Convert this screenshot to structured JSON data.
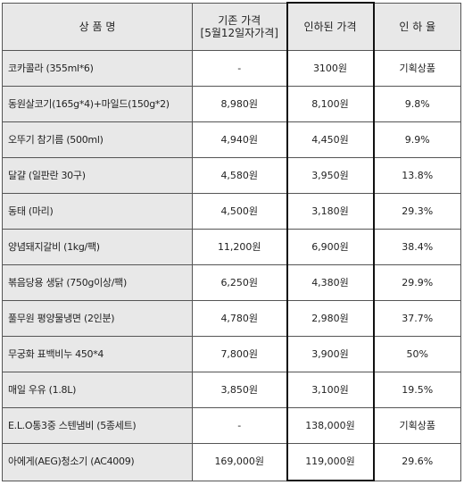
{
  "header": {
    "col_name": "상 품 명",
    "col_before_line1": "기존 가격",
    "col_before_line2": "[5월12일자가격]",
    "col_after": "인하된 가격",
    "col_rate": "인 하 율"
  },
  "rows": [
    {
      "name": "코카콜라 (355ml*6)",
      "before": "-",
      "after": "3100원",
      "rate": "기획상품"
    },
    {
      "name": "동원살코기(165g*4)+마일드(150g*2)",
      "before": "8,980원",
      "after": "8,100원",
      "rate": "9.8%"
    },
    {
      "name": "오뚜기 참기름 (500ml)",
      "before": "4,940원",
      "after": "4,450원",
      "rate": "9.9%"
    },
    {
      "name": "달걀 (일판란 30구)",
      "before": "4,580원",
      "after": "3,950원",
      "rate": "13.8%"
    },
    {
      "name": "동태 (마리)",
      "before": "4,500원",
      "after": "3,180원",
      "rate": "29.3%"
    },
    {
      "name": "양념돼지갈비 (1kg/팩)",
      "before": "11,200원",
      "after": "6,900원",
      "rate": "38.4%"
    },
    {
      "name": "볶음당용 생닭 (750g이상/팩)",
      "before": "6,250원",
      "after": "4,380원",
      "rate": "29.9%"
    },
    {
      "name": "풀무원 평양물냉면 (2인분)",
      "before": "4,780원",
      "after": "2,980원",
      "rate": "37.7%"
    },
    {
      "name": "무궁화 표백비누 450*4",
      "before": "7,800원",
      "after": "3,900원",
      "rate": "50%"
    },
    {
      "name": "매일 우유 (1.8L)",
      "before": "3,850원",
      "after": "3,100원",
      "rate": "19.5%"
    },
    {
      "name": "E.L.O통3중 스텐냄비 (5종세트)",
      "before": "-",
      "after": "138,000원",
      "rate": "기획상품"
    },
    {
      "name": "아에게(AEG)청소기 (AC4009)",
      "before": "169,000원",
      "after": "119,000원",
      "rate": "29.6%"
    }
  ]
}
